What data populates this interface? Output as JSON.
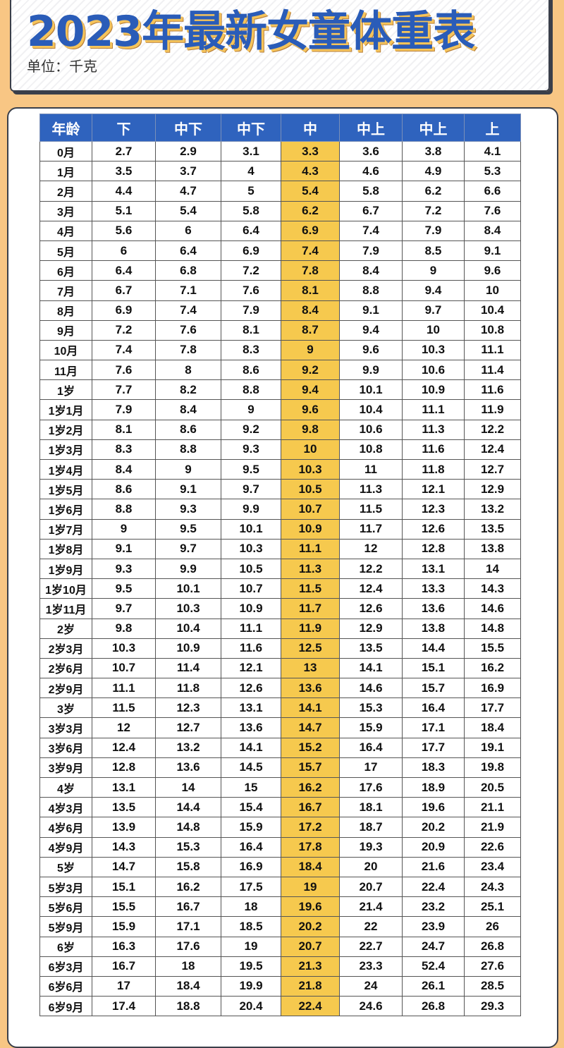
{
  "title": "2023年最新女童体重表",
  "unit": "单位：千克",
  "colors": {
    "header": "#2f63be",
    "highlight": "#f6c94e",
    "background": "#f8c684",
    "title": "#2a5cb8"
  },
  "columns": [
    "年龄",
    "下",
    "中下",
    "中下",
    "中",
    "中上",
    "中上",
    "上"
  ],
  "rows": [
    [
      "0月",
      "2.7",
      "2.9",
      "3.1",
      "3.3",
      "3.6",
      "3.8",
      "4.1"
    ],
    [
      "1月",
      "3.5",
      "3.7",
      "4",
      "4.3",
      "4.6",
      "4.9",
      "5.3"
    ],
    [
      "2月",
      "4.4",
      "4.7",
      "5",
      "5.4",
      "5.8",
      "6.2",
      "6.6"
    ],
    [
      "3月",
      "5.1",
      "5.4",
      "5.8",
      "6.2",
      "6.7",
      "7.2",
      "7.6"
    ],
    [
      "4月",
      "5.6",
      "6",
      "6.4",
      "6.9",
      "7.4",
      "7.9",
      "8.4"
    ],
    [
      "5月",
      "6",
      "6.4",
      "6.9",
      "7.4",
      "7.9",
      "8.5",
      "9.1"
    ],
    [
      "6月",
      "6.4",
      "6.8",
      "7.2",
      "7.8",
      "8.4",
      "9",
      "9.6"
    ],
    [
      "7月",
      "6.7",
      "7.1",
      "7.6",
      "8.1",
      "8.8",
      "9.4",
      "10"
    ],
    [
      "8月",
      "6.9",
      "7.4",
      "7.9",
      "8.4",
      "9.1",
      "9.7",
      "10.4"
    ],
    [
      "9月",
      "7.2",
      "7.6",
      "8.1",
      "8.7",
      "9.4",
      "10",
      "10.8"
    ],
    [
      "10月",
      "7.4",
      "7.8",
      "8.3",
      "9",
      "9.6",
      "10.3",
      "11.1"
    ],
    [
      "11月",
      "7.6",
      "8",
      "8.6",
      "9.2",
      "9.9",
      "10.6",
      "11.4"
    ],
    [
      "1岁",
      "7.7",
      "8.2",
      "8.8",
      "9.4",
      "10.1",
      "10.9",
      "11.6"
    ],
    [
      "1岁1月",
      "7.9",
      "8.4",
      "9",
      "9.6",
      "10.4",
      "11.1",
      "11.9"
    ],
    [
      "1岁2月",
      "8.1",
      "8.6",
      "9.2",
      "9.8",
      "10.6",
      "11.3",
      "12.2"
    ],
    [
      "1岁3月",
      "8.3",
      "8.8",
      "9.3",
      "10",
      "10.8",
      "11.6",
      "12.4"
    ],
    [
      "1岁4月",
      "8.4",
      "9",
      "9.5",
      "10.3",
      "11",
      "11.8",
      "12.7"
    ],
    [
      "1岁5月",
      "8.6",
      "9.1",
      "9.7",
      "10.5",
      "11.3",
      "12.1",
      "12.9"
    ],
    [
      "1岁6月",
      "8.8",
      "9.3",
      "9.9",
      "10.7",
      "11.5",
      "12.3",
      "13.2"
    ],
    [
      "1岁7月",
      "9",
      "9.5",
      "10.1",
      "10.9",
      "11.7",
      "12.6",
      "13.5"
    ],
    [
      "1岁8月",
      "9.1",
      "9.7",
      "10.3",
      "11.1",
      "12",
      "12.8",
      "13.8"
    ],
    [
      "1岁9月",
      "9.3",
      "9.9",
      "10.5",
      "11.3",
      "12.2",
      "13.1",
      "14"
    ],
    [
      "1岁10月",
      "9.5",
      "10.1",
      "10.7",
      "11.5",
      "12.4",
      "13.3",
      "14.3"
    ],
    [
      "1岁11月",
      "9.7",
      "10.3",
      "10.9",
      "11.7",
      "12.6",
      "13.6",
      "14.6"
    ],
    [
      "2岁",
      "9.8",
      "10.4",
      "11.1",
      "11.9",
      "12.9",
      "13.8",
      "14.8"
    ],
    [
      "2岁3月",
      "10.3",
      "10.9",
      "11.6",
      "12.5",
      "13.5",
      "14.4",
      "15.5"
    ],
    [
      "2岁6月",
      "10.7",
      "11.4",
      "12.1",
      "13",
      "14.1",
      "15.1",
      "16.2"
    ],
    [
      "2岁9月",
      "11.1",
      "11.8",
      "12.6",
      "13.6",
      "14.6",
      "15.7",
      "16.9"
    ],
    [
      "3岁",
      "11.5",
      "12.3",
      "13.1",
      "14.1",
      "15.3",
      "16.4",
      "17.7"
    ],
    [
      "3岁3月",
      "12",
      "12.7",
      "13.6",
      "14.7",
      "15.9",
      "17.1",
      "18.4"
    ],
    [
      "3岁6月",
      "12.4",
      "13.2",
      "14.1",
      "15.2",
      "16.4",
      "17.7",
      "19.1"
    ],
    [
      "3岁9月",
      "12.8",
      "13.6",
      "14.5",
      "15.7",
      "17",
      "18.3",
      "19.8"
    ],
    [
      "4岁",
      "13.1",
      "14",
      "15",
      "16.2",
      "17.6",
      "18.9",
      "20.5"
    ],
    [
      "4岁3月",
      "13.5",
      "14.4",
      "15.4",
      "16.7",
      "18.1",
      "19.6",
      "21.1"
    ],
    [
      "4岁6月",
      "13.9",
      "14.8",
      "15.9",
      "17.2",
      "18.7",
      "20.2",
      "21.9"
    ],
    [
      "4岁9月",
      "14.3",
      "15.3",
      "16.4",
      "17.8",
      "19.3",
      "20.9",
      "22.6"
    ],
    [
      "5岁",
      "14.7",
      "15.8",
      "16.9",
      "18.4",
      "20",
      "21.6",
      "23.4"
    ],
    [
      "5岁3月",
      "15.1",
      "16.2",
      "17.5",
      "19",
      "20.7",
      "22.4",
      "24.3"
    ],
    [
      "5岁6月",
      "15.5",
      "16.7",
      "18",
      "19.6",
      "21.4",
      "23.2",
      "25.1"
    ],
    [
      "5岁9月",
      "15.9",
      "17.1",
      "18.5",
      "20.2",
      "22",
      "23.9",
      "26"
    ],
    [
      "6岁",
      "16.3",
      "17.6",
      "19",
      "20.7",
      "22.7",
      "24.7",
      "26.8"
    ],
    [
      "6岁3月",
      "16.7",
      "18",
      "19.5",
      "21.3",
      "23.3",
      "52.4",
      "27.6"
    ],
    [
      "6岁6月",
      "17",
      "18.4",
      "19.9",
      "21.8",
      "24",
      "26.1",
      "28.5"
    ],
    [
      "6岁9月",
      "17.4",
      "18.8",
      "20.4",
      "22.4",
      "24.6",
      "26.8",
      "29.3"
    ]
  ]
}
